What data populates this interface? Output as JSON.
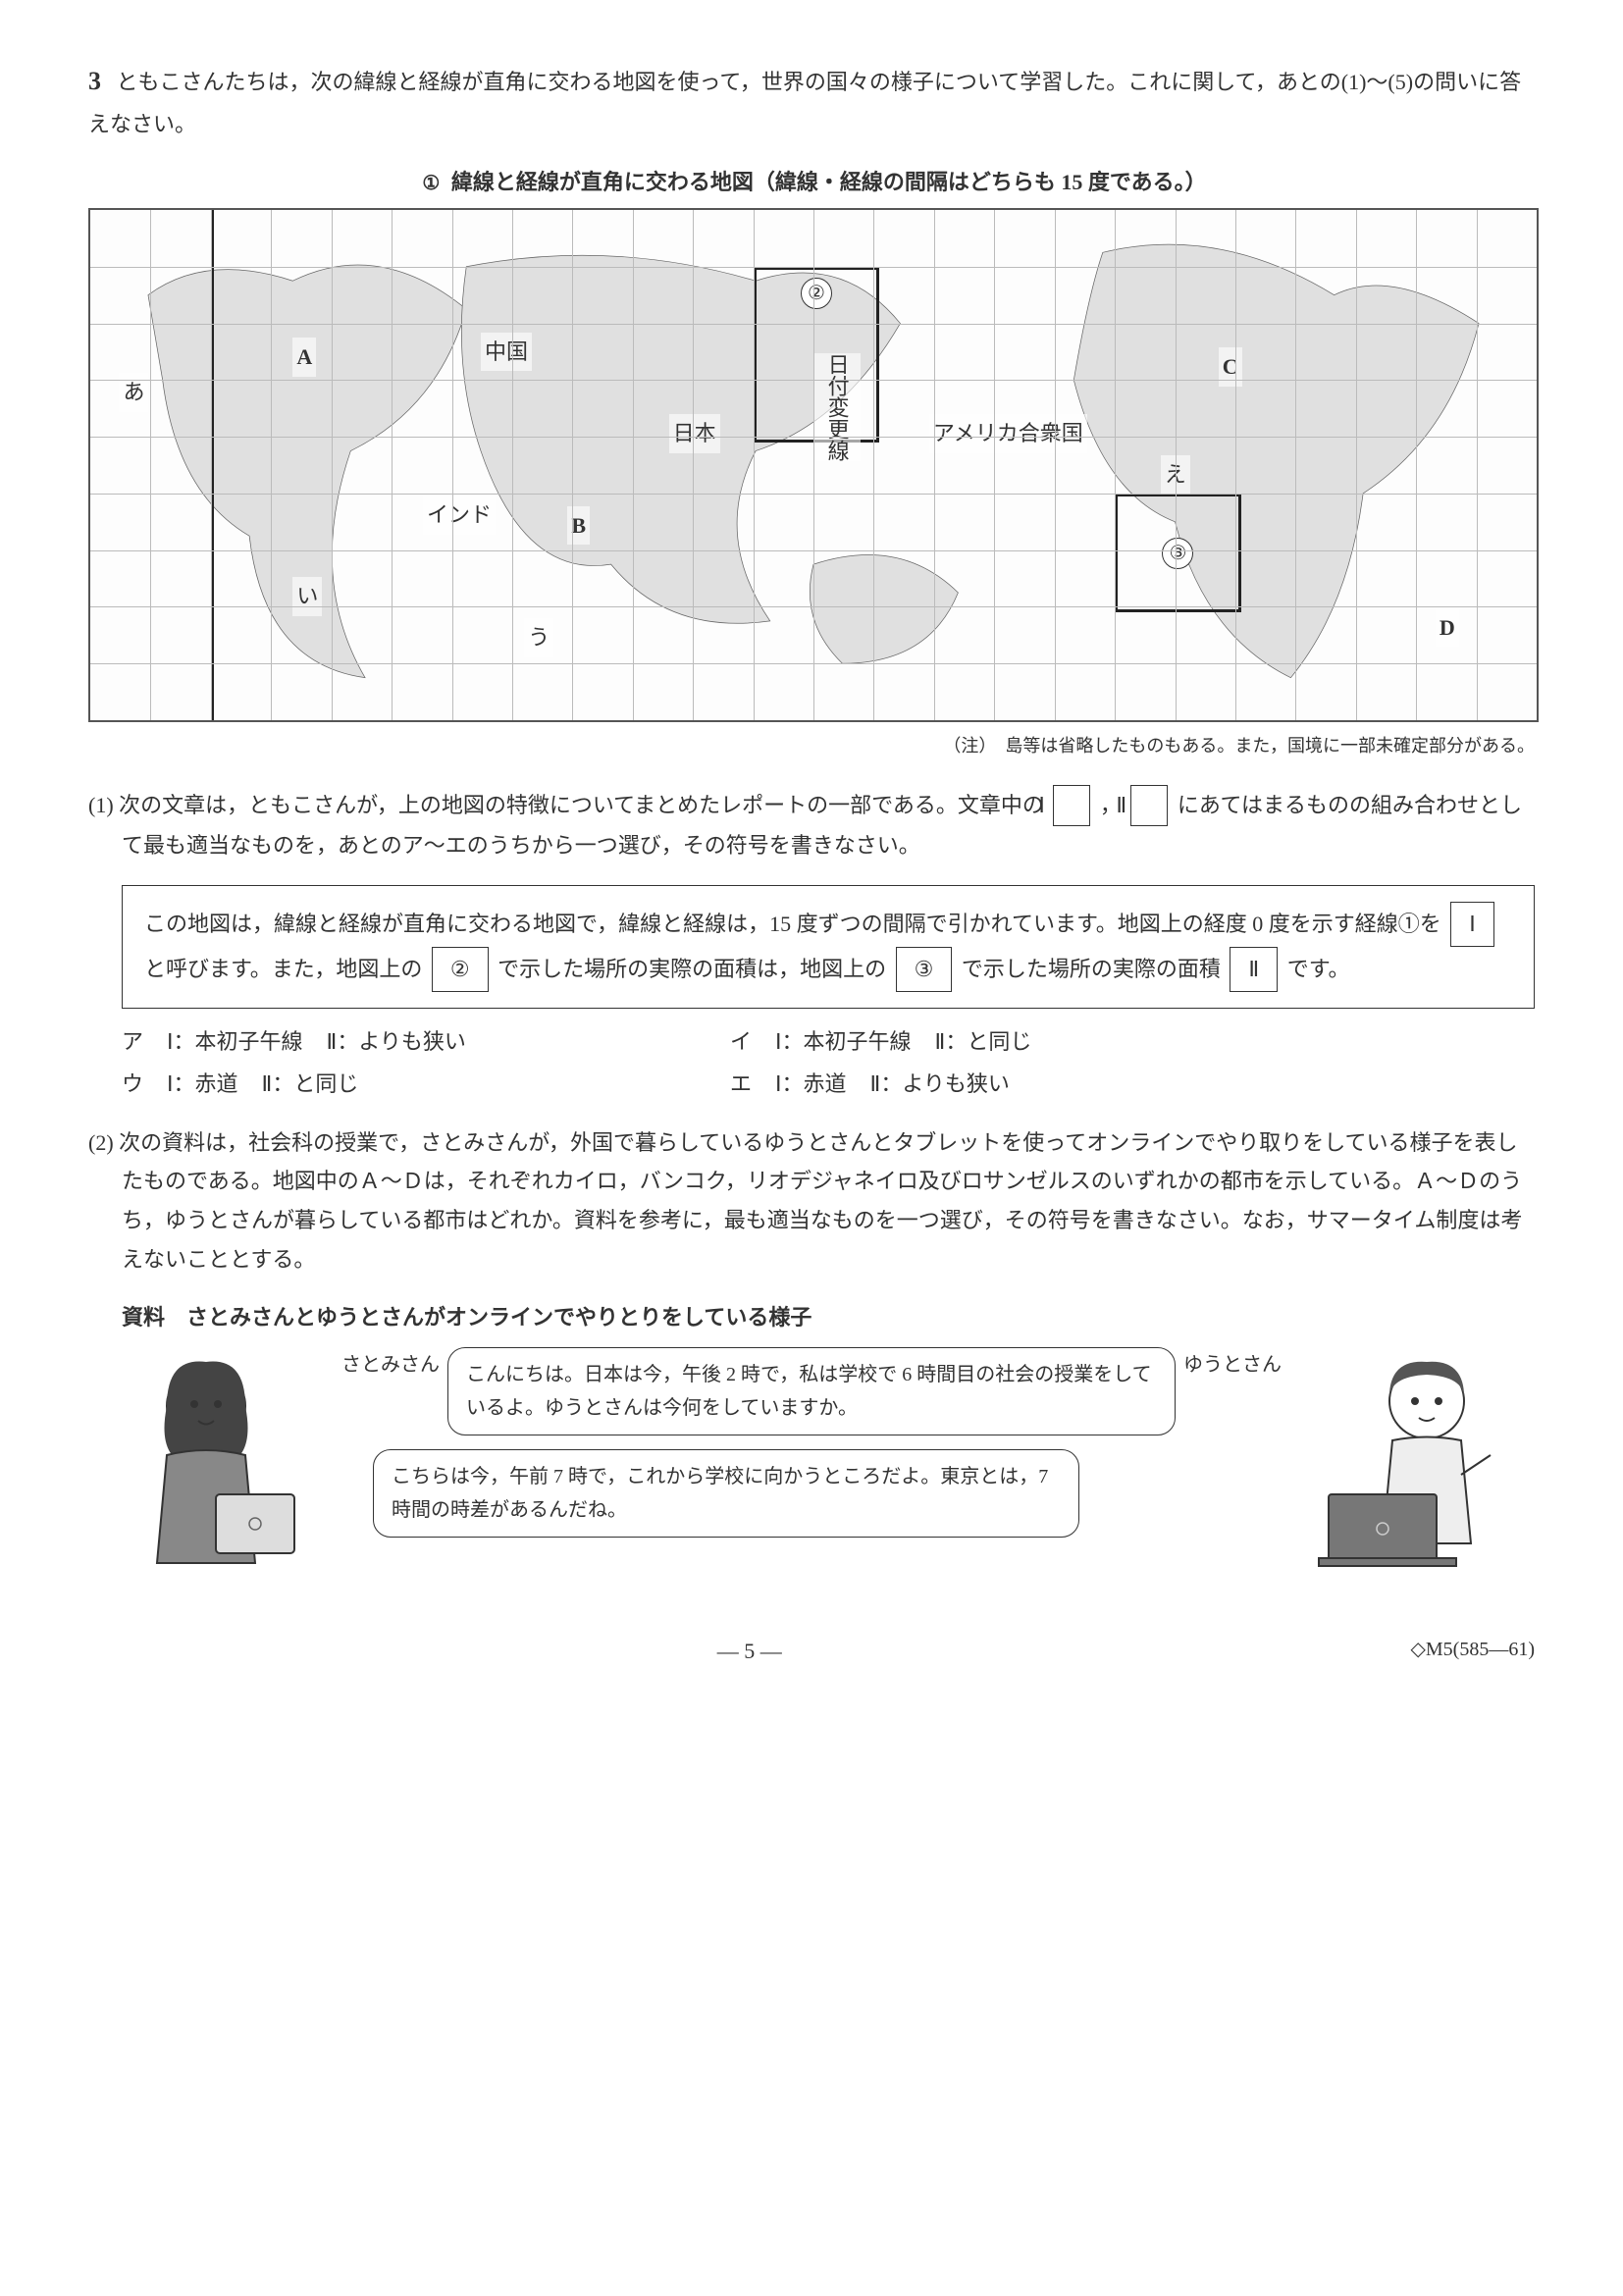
{
  "question": {
    "number": "3",
    "intro": "ともこさんたちは，次の緯線と経線が直角に交わる地図を使って，世界の国々の様子について学習した。これに関して，あとの(1)〜(5)の問いに答えなさい。"
  },
  "map": {
    "title": "緯線と経線が直角に交わる地図（緯線・経線の間隔はどちらも 15 度である。）",
    "heavy_meridian_label": "①",
    "box2_label": "②",
    "box3_label": "③",
    "labels": {
      "a": "あ",
      "i": "い",
      "u": "う",
      "e": "え",
      "A": "A",
      "B": "B",
      "C": "C",
      "D": "D",
      "china": "中国",
      "india": "インド",
      "japan": "日本",
      "usa": "アメリカ合衆国",
      "dateline": "日付変更線"
    },
    "note": "（注）　島等は省略したものもある。また，国境に一部未確定部分がある。",
    "grid": {
      "cols": 24,
      "rows": 9
    },
    "heavy_meridian_col": 2,
    "box2": {
      "left_col": 11,
      "top_row": 1,
      "w_cols": 2,
      "h_cols": 3
    },
    "box3": {
      "left_col": 17,
      "top_row": 5,
      "w_cols": 2,
      "h_cols": 2
    }
  },
  "subq1": {
    "number": "(1)",
    "lead_a": "次の文章は，ともこさんが，上の地図の特徴についてまとめたレポートの一部である。文章中の",
    "blank_I": "Ⅰ",
    "comma": "，",
    "blank_II": "Ⅱ",
    "lead_b": "にあてはまるものの組み合わせとして最も適当なものを，あとのア〜エのうちから一つ選び，その符号を書きなさい。",
    "quote": {
      "t1": "この地図は，緯線と経線が直角に交わる地図で，緯線と経線は，15 度ずつの間隔で引かれています。地図上の経度 0 度を示す経線①を",
      "b1": "Ⅰ",
      "t2": "と呼びます。また，地図上の",
      "b2": "②",
      "t3": "で示した場所の実際の面積は，地図上の",
      "b3": "③",
      "t4": "で示した場所の実際の面積",
      "b4": "Ⅱ",
      "t5": "です。"
    },
    "choices": {
      "a": {
        "sym": "ア",
        "i": "Ⅰ：本初子午線",
        "ii": "Ⅱ：よりも狭い"
      },
      "i": {
        "sym": "イ",
        "i": "Ⅰ：本初子午線",
        "ii": "Ⅱ：と同じ"
      },
      "u": {
        "sym": "ウ",
        "i": "Ⅰ：赤道",
        "ii": "Ⅱ：と同じ"
      },
      "e": {
        "sym": "エ",
        "i": "Ⅰ：赤道",
        "ii": "Ⅱ：よりも狭い"
      }
    }
  },
  "subq2": {
    "number": "(2)",
    "text": "次の資料は，社会科の授業で，さとみさんが，外国で暮らしているゆうとさんとタブレットを使ってオンラインでやり取りをしている様子を表したものである。地図中のＡ〜Ｄは，それぞれカイロ，バンコク，リオデジャネイロ及びロサンゼルスのいずれかの都市を示している。Ａ〜Ｄのうち，ゆうとさんが暮らしている都市はどれか。資料を参考に，最も適当なものを一つ選び，その符号を書きなさい。なお，サマータイム制度は考えないこととする。",
    "material_title": "資料　さとみさんとゆうとさんがオンラインでやりとりをしている様子",
    "satomi_name": "さとみさん",
    "yuuto_name": "ゆうとさん",
    "bubble1": "こんにちは。日本は今，午後 2 時で，私は学校で 6 時間目の社会の授業をしているよ。ゆうとさんは今何をしていますか。",
    "bubble2": "こちらは今，午前 7 時で，これから学校に向かうところだよ。東京とは，7 時間の時差があるんだね。"
  },
  "footer": {
    "page": "— 5 —",
    "code": "◇M5(585—61)"
  },
  "colors": {
    "text": "#333333",
    "border": "#333333",
    "grid": "#bbbbbb",
    "land": "#e0e0e0",
    "bg": "#ffffff"
  }
}
